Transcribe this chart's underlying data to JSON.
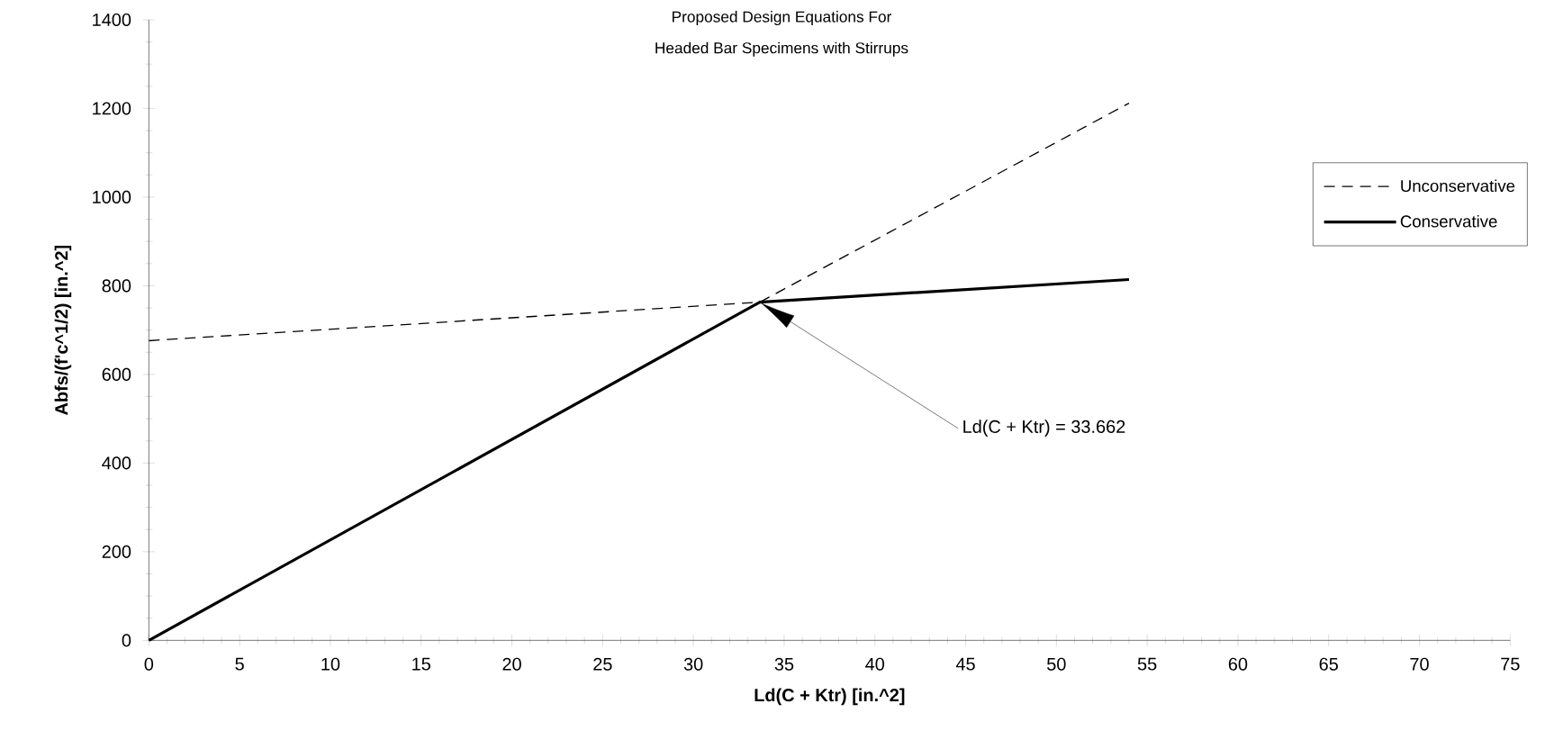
{
  "chart_data": {
    "type": "line",
    "title": "Proposed Design Equations For",
    "subtitle": "Headed Bar Specimens with Stirrups",
    "xlabel": "Ld(C + Ktr)  [in.^2]",
    "ylabel": "Abfs/(f'c^1/2)     [in.^2]",
    "x": [
      0,
      33.662,
      54
    ],
    "series": [
      {
        "name": "Unconservative",
        "color": "#000000",
        "line_style": "dashed",
        "values": [
          676,
          763,
          1212
        ]
      },
      {
        "name": "Conservative",
        "color": "#000000",
        "line_style": "solid",
        "values": [
          0,
          763,
          814
        ]
      }
    ],
    "xlim": [
      0,
      75
    ],
    "ylim": [
      0,
      1400
    ],
    "xticks": [
      0,
      5,
      10,
      15,
      20,
      25,
      30,
      35,
      40,
      45,
      50,
      55,
      60,
      65,
      70,
      75
    ],
    "yticks": [
      0,
      200,
      400,
      600,
      800,
      1000,
      1200,
      1400
    ],
    "annotations": [
      "Ld(C + Ktr) = 33.662"
    ],
    "legend": "right",
    "grid": false,
    "marker": "none"
  }
}
